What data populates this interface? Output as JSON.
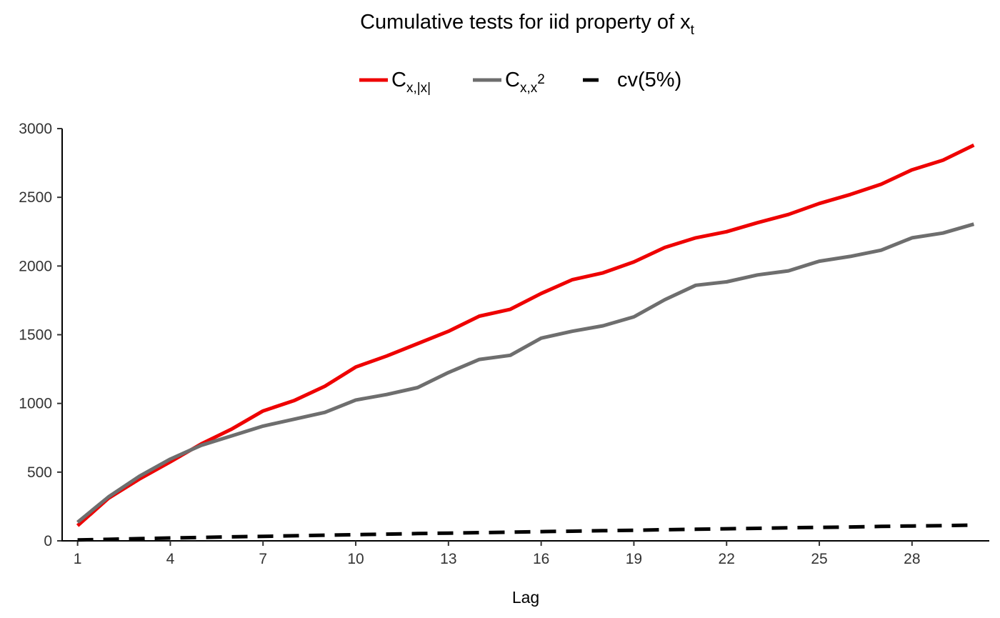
{
  "chart_data": {
    "type": "line",
    "title": {
      "main": "Cumulative tests for iid property of x",
      "subscript": "t"
    },
    "xlabel": "Lag",
    "ylabel": "",
    "x": [
      1,
      2,
      3,
      4,
      5,
      6,
      7,
      8,
      9,
      10,
      11,
      12,
      13,
      14,
      15,
      16,
      17,
      18,
      19,
      20,
      21,
      22,
      23,
      24,
      25,
      26,
      27,
      28,
      29,
      30
    ],
    "xticks": [
      1,
      4,
      7,
      10,
      13,
      16,
      19,
      22,
      25,
      28
    ],
    "xlim": [
      0.5,
      30.5
    ],
    "yticks": [
      0,
      500,
      1000,
      1500,
      2000,
      2500,
      3000
    ],
    "ylim": [
      0,
      3000
    ],
    "grid": false,
    "legend_position": "top",
    "series": [
      {
        "name": "C",
        "name_subscript": "x,|x|",
        "color": "#ee0000",
        "dash": "solid",
        "values": [
          110,
          310,
          450,
          575,
          705,
          815,
          945,
          1020,
          1125,
          1265,
          1345,
          1435,
          1525,
          1635,
          1685,
          1800,
          1900,
          1950,
          2030,
          2135,
          2205,
          2250,
          2315,
          2375,
          2455,
          2520,
          2595,
          2700,
          2770,
          2880
        ]
      },
      {
        "name": "C",
        "name_subscript": "x,x",
        "name_superscript": "2",
        "color": "#6e6e6e",
        "dash": "solid",
        "values": [
          135,
          320,
          470,
          595,
          695,
          765,
          835,
          885,
          935,
          1025,
          1065,
          1115,
          1225,
          1320,
          1350,
          1475,
          1525,
          1565,
          1630,
          1755,
          1860,
          1885,
          1935,
          1965,
          2035,
          2070,
          2115,
          2205,
          2240,
          2305
        ]
      },
      {
        "name": "cv(5%)",
        "color": "#000000",
        "dash": "dashed",
        "values": [
          6,
          11,
          16,
          21,
          25,
          29,
          33,
          37,
          41,
          45,
          49,
          53,
          56,
          60,
          63,
          67,
          70,
          74,
          77,
          81,
          84,
          88,
          91,
          95,
          98,
          101,
          105,
          108,
          111,
          115
        ]
      }
    ]
  }
}
